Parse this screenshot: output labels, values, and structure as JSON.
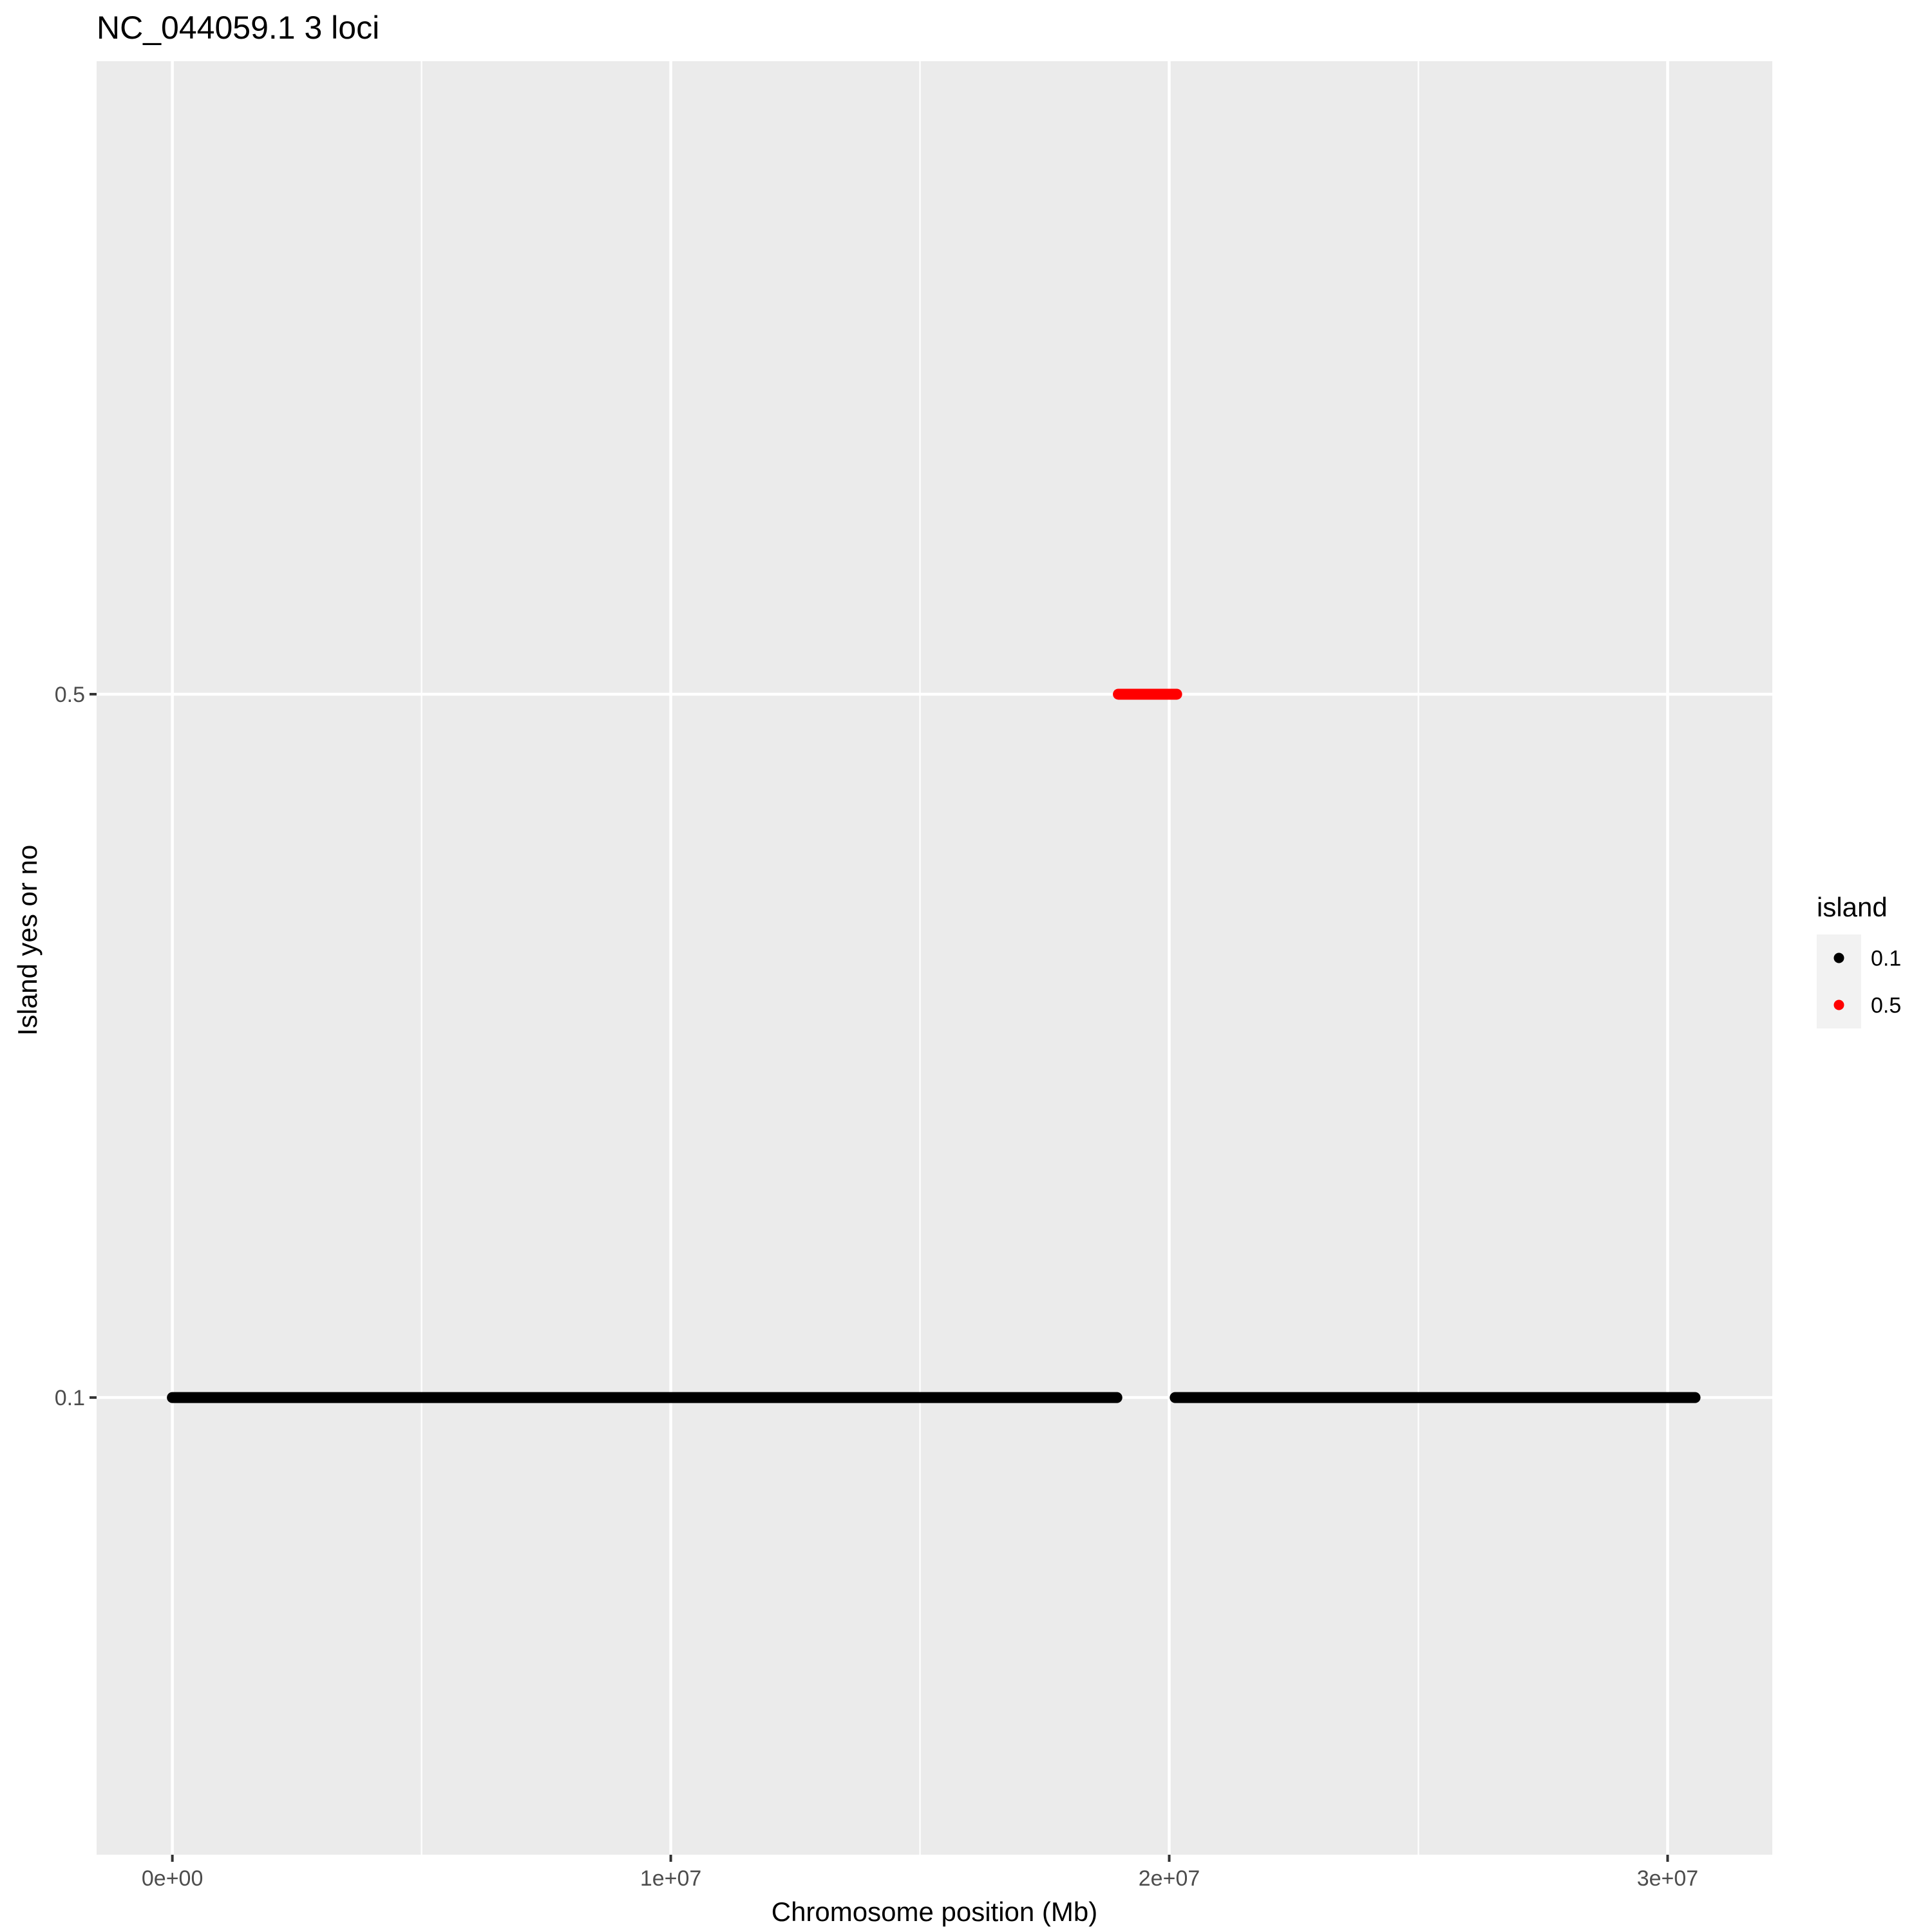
{
  "chart_data": {
    "type": "scatter",
    "title": "NC_044059.1 3 loci",
    "xlabel": "Chromosome position (Mb)",
    "ylabel": "Island yes or no",
    "xlim": [
      -1520000,
      32100000
    ],
    "ylim": [
      -0.16,
      0.86
    ],
    "x_ticks": [
      {
        "value": 0,
        "label": "0e+00"
      },
      {
        "value": 10000000,
        "label": "1e+07"
      },
      {
        "value": 20000000,
        "label": "2e+07"
      },
      {
        "value": 30000000,
        "label": "3e+07"
      }
    ],
    "x_minor_ticks": [
      5000000,
      15000000,
      25000000
    ],
    "y_ticks": [
      {
        "value": 0.1,
        "label": "0.1"
      },
      {
        "value": 0.5,
        "label": "0.5"
      }
    ],
    "y_minor_ticks": [],
    "grid": true,
    "legend": {
      "title": "island",
      "placement": "right",
      "entries": [
        {
          "label": "0.1",
          "color": "#000000"
        },
        {
          "label": "0.5",
          "color": "#ff0000"
        }
      ]
    },
    "series": [
      {
        "name": "0.1",
        "color": "#000000",
        "y": 0.1,
        "x_ranges": [
          [
            0,
            18950000
          ],
          [
            20120000,
            30550000
          ]
        ]
      },
      {
        "name": "0.5",
        "color": "#ff0000",
        "y": 0.5,
        "x_ranges": [
          [
            18980000,
            20150000
          ]
        ]
      }
    ]
  }
}
